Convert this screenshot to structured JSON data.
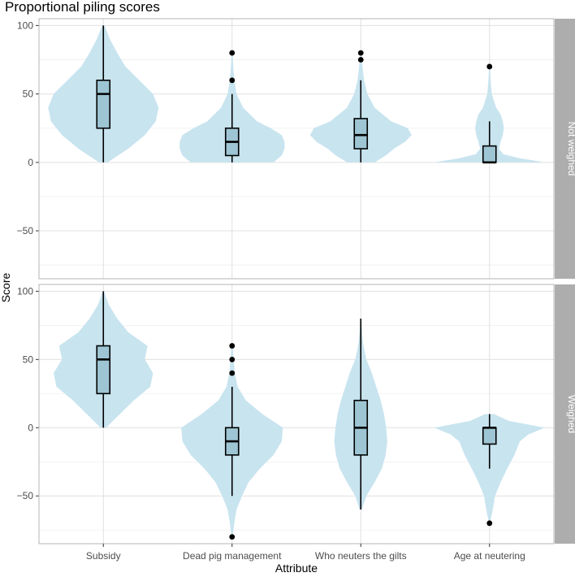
{
  "chart_data": {
    "type": "violin",
    "title": "Proportional piling scores",
    "xlabel": "Attribute",
    "ylabel": "Score",
    "categories": [
      "Subsidy",
      "Dead pig management",
      "Who neuters the gilts",
      "Age at neutering"
    ],
    "y_ticks": [
      100,
      50,
      0,
      -50
    ],
    "ylim": [
      -85,
      105
    ],
    "grid": true,
    "facets": [
      {
        "label": "Not weighed",
        "groups": [
          {
            "category": "Subsidy",
            "violin": {
              "y": [
                0,
                10,
                20,
                30,
                40,
                50,
                60,
                70,
                80,
                90,
                100
              ],
              "density": [
                0.08,
                0.45,
                0.75,
                0.95,
                1.0,
                0.9,
                0.65,
                0.4,
                0.25,
                0.12,
                0.02
              ]
            },
            "box": {
              "min": 0,
              "q1": 25,
              "median": 50,
              "q3": 60,
              "max": 100
            },
            "outliers": []
          },
          {
            "category": "Dead pig management",
            "violin": {
              "y": [
                0,
                5,
                10,
                15,
                20,
                25,
                30,
                40,
                50,
                60,
                70,
                80
              ],
              "density": [
                0.75,
                0.9,
                0.95,
                0.95,
                0.9,
                0.7,
                0.45,
                0.2,
                0.08,
                0.04,
                0.02,
                0.01
              ]
            },
            "box": {
              "min": 0,
              "q1": 5,
              "median": 15,
              "q3": 25,
              "max": 50
            },
            "outliers": [
              60,
              80
            ]
          },
          {
            "category": "Who neuters the gilts",
            "violin": {
              "y": [
                0,
                5,
                10,
                15,
                20,
                25,
                30,
                35,
                40,
                50,
                60,
                70,
                80
              ],
              "density": [
                0.25,
                0.45,
                0.6,
                0.8,
                0.92,
                0.85,
                0.55,
                0.4,
                0.25,
                0.12,
                0.06,
                0.03,
                0.01
              ]
            },
            "box": {
              "min": 0,
              "q1": 10,
              "median": 20,
              "q3": 32,
              "max": 60
            },
            "outliers": [
              75,
              80
            ]
          },
          {
            "category": "Age at neutering",
            "violin": {
              "y": [
                0,
                3,
                6,
                10,
                15,
                20,
                25,
                30,
                35,
                40,
                50,
                60,
                70
              ],
              "density": [
                1.0,
                0.55,
                0.25,
                0.17,
                0.2,
                0.24,
                0.26,
                0.24,
                0.2,
                0.12,
                0.04,
                0.02,
                0.01
              ]
            },
            "box": {
              "min": 0,
              "q1": 0,
              "median": 0,
              "q3": 12,
              "max": 30
            },
            "outliers": [
              70
            ]
          }
        ]
      },
      {
        "label": "Weighed",
        "groups": [
          {
            "category": "Subsidy",
            "violin": {
              "y": [
                0,
                10,
                20,
                30,
                40,
                50,
                60,
                70,
                80,
                90,
                100
              ],
              "density": [
                0.05,
                0.3,
                0.55,
                0.85,
                0.9,
                0.75,
                0.8,
                0.45,
                0.25,
                0.1,
                0.01
              ]
            },
            "box": {
              "min": 0,
              "q1": 25,
              "median": 50,
              "q3": 60,
              "max": 100
            },
            "outliers": []
          },
          {
            "category": "Dead pig management",
            "violin": {
              "y": [
                -80,
                -70,
                -60,
                -50,
                -40,
                -30,
                -20,
                -10,
                0,
                10,
                20,
                30,
                40,
                50,
                60
              ],
              "density": [
                0.01,
                0.04,
                0.08,
                0.18,
                0.3,
                0.5,
                0.75,
                0.9,
                0.92,
                0.55,
                0.25,
                0.1,
                0.05,
                0.03,
                0.01
              ]
            },
            "box": {
              "min": -50,
              "q1": -20,
              "median": -10,
              "q3": 0,
              "max": 30
            },
            "outliers": [
              40,
              50,
              60,
              -80
            ]
          },
          {
            "category": "Who neuters the gilts",
            "violin": {
              "y": [
                -60,
                -50,
                -40,
                -30,
                -20,
                -10,
                0,
                10,
                20,
                30,
                40,
                50,
                60,
                70,
                80
              ],
              "density": [
                0.02,
                0.1,
                0.25,
                0.38,
                0.45,
                0.48,
                0.46,
                0.42,
                0.36,
                0.28,
                0.2,
                0.1,
                0.05,
                0.02,
                0.01
              ]
            },
            "box": {
              "min": -60,
              "q1": -20,
              "median": 0,
              "q3": 20,
              "max": 80
            },
            "outliers": []
          },
          {
            "category": "Age at neutering",
            "violin": {
              "y": [
                -70,
                -60,
                -50,
                -40,
                -30,
                -20,
                -10,
                -5,
                0,
                5,
                10
              ],
              "density": [
                0.01,
                0.06,
                0.1,
                0.2,
                0.32,
                0.45,
                0.55,
                0.7,
                1.0,
                0.35,
                0.08
              ]
            },
            "box": {
              "min": -30,
              "q1": -12,
              "median": 0,
              "q3": 0,
              "max": 10
            },
            "outliers": [
              -70
            ]
          }
        ]
      }
    ],
    "colors": {
      "violin_fill": "#c8e4ef",
      "box_fill": "#9ec5d3",
      "outline": "#000000",
      "grid": "#e0e0e0",
      "panel_border": "#b4b4b4",
      "strip_bg": "#adadad",
      "strip_text": "#ffffff"
    }
  }
}
